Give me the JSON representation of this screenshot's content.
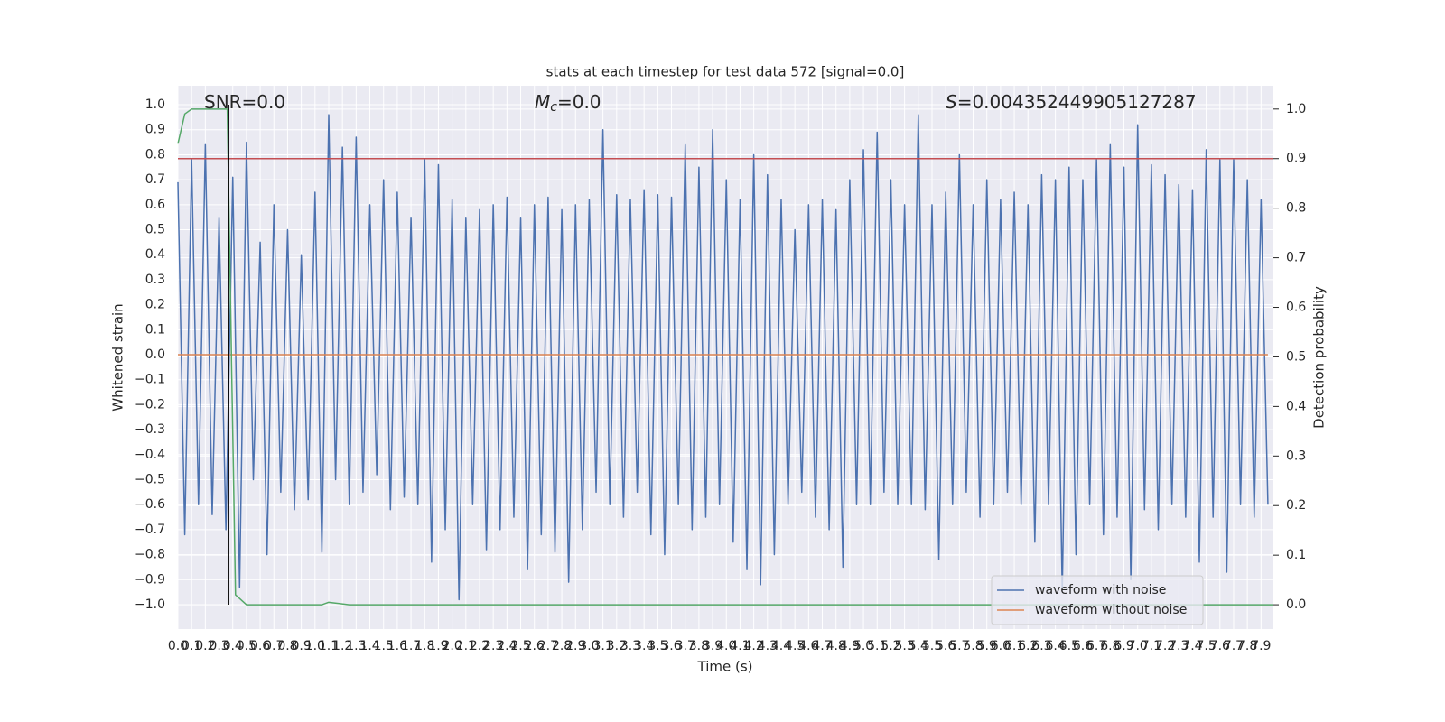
{
  "chart_data": {
    "type": "line",
    "title": "stats at each timestep for test data 572 [signal=0.0]",
    "xlabel": "Time (s)",
    "ylabel": "Whitened strain",
    "y2label": "Detection probability",
    "annotations": [
      {
        "parts": [
          {
            "text": "SNR=0.0"
          }
        ]
      },
      {
        "parts": [
          {
            "text": "M",
            "style": "italic"
          },
          {
            "text": "c",
            "style": "sub"
          },
          {
            "text": "=0.0"
          }
        ]
      },
      {
        "parts": [
          {
            "text": "S",
            "style": "italic"
          },
          {
            "text": "=0.004352449905127287"
          }
        ]
      }
    ],
    "xlim": [
      0,
      7.99
    ],
    "ylim": [
      -1.0975,
      1.076
    ],
    "y2lim": [
      -0.049,
      1.047
    ],
    "grid": true,
    "legend": "lower right",
    "background": "#eaeaf2",
    "xticks": [
      {
        "value": 0,
        "label": "0.0"
      },
      0.1,
      0.2,
      0.3,
      0.4,
      0.5,
      0.6,
      0.7,
      0.8,
      0.9,
      {
        "value": 1,
        "label": "1.0"
      },
      1.1,
      1.2,
      1.3,
      1.4,
      1.5,
      1.6,
      1.7,
      1.8,
      1.9,
      {
        "value": 2,
        "label": "2.0"
      },
      2.1,
      2.2,
      2.3,
      2.4,
      2.5,
      2.6,
      2.7,
      2.8,
      2.9,
      {
        "value": 3,
        "label": "3.0"
      },
      3.1,
      3.2,
      3.3,
      3.4,
      3.5,
      3.6,
      3.7,
      3.8,
      3.9,
      {
        "value": 4,
        "label": "4.0"
      },
      4.1,
      4.2,
      4.3,
      4.4,
      4.5,
      4.6,
      4.7,
      4.8,
      4.9,
      {
        "value": 5,
        "label": "5.0"
      },
      5.1,
      5.2,
      5.3,
      5.4,
      5.5,
      5.6,
      5.7,
      5.8,
      5.9,
      {
        "value": 6,
        "label": "6.0"
      },
      6.1,
      6.2,
      6.3,
      6.4,
      6.5,
      6.6,
      6.7,
      6.8,
      6.9,
      {
        "value": 7,
        "label": "7.0"
      },
      7.1,
      7.2,
      7.3,
      7.4,
      7.5,
      7.6,
      7.7,
      7.8,
      7.9
    ],
    "yticks": [
      {
        "value": -1,
        "label": "−1.0"
      },
      {
        "value": -0.9,
        "label": "−0.9"
      },
      {
        "value": -0.8,
        "label": "−0.8"
      },
      {
        "value": -0.7,
        "label": "−0.7"
      },
      {
        "value": -0.6,
        "label": "−0.6"
      },
      {
        "value": -0.5,
        "label": "−0.5"
      },
      {
        "value": -0.4,
        "label": "−0.4"
      },
      {
        "value": -0.3,
        "label": "−0.3"
      },
      {
        "value": -0.2,
        "label": "−0.2"
      },
      {
        "value": -0.1,
        "label": "−0.1"
      },
      {
        "value": 0,
        "label": "0.0"
      },
      0.1,
      0.2,
      0.3,
      0.4,
      0.5,
      0.6,
      0.7,
      0.8,
      0.9,
      {
        "value": 1,
        "label": "1.0"
      }
    ],
    "y2ticks": [
      {
        "value": 0,
        "label": "0.0"
      },
      0.1,
      0.2,
      0.3,
      0.4,
      0.5,
      0.6,
      0.7,
      0.8,
      0.9,
      {
        "value": 1,
        "label": "1.0"
      }
    ],
    "series": [
      {
        "name": "waveform with noise",
        "color": "#4c72b0",
        "x": [
          0,
          0.05,
          0.1,
          0.15,
          0.2,
          0.25,
          0.3,
          0.35,
          0.4,
          0.45,
          0.5,
          0.55,
          0.6,
          0.65,
          0.7,
          0.75,
          0.8,
          0.85,
          0.9,
          0.95,
          1,
          1.05,
          1.1,
          1.15,
          1.2,
          1.25,
          1.3,
          1.35,
          1.4,
          1.45,
          1.5,
          1.55,
          1.6,
          1.65,
          1.7,
          1.75,
          1.8,
          1.85,
          1.9,
          1.95,
          2,
          2.05,
          2.1,
          2.15,
          2.2,
          2.25,
          2.3,
          2.35,
          2.4,
          2.45,
          2.5,
          2.55,
          2.6,
          2.65,
          2.7,
          2.75,
          2.8,
          2.85,
          2.9,
          2.95,
          3,
          3.05,
          3.1,
          3.15,
          3.2,
          3.25,
          3.3,
          3.35,
          3.4,
          3.45,
          3.5,
          3.55,
          3.6,
          3.65,
          3.7,
          3.75,
          3.8,
          3.85,
          3.9,
          3.95,
          4,
          4.05,
          4.1,
          4.15,
          4.2,
          4.25,
          4.3,
          4.35,
          4.4,
          4.45,
          4.5,
          4.55,
          4.6,
          4.65,
          4.7,
          4.75,
          4.8,
          4.85,
          4.9,
          4.95,
          5,
          5.05,
          5.1,
          5.15,
          5.2,
          5.25,
          5.3,
          5.35,
          5.4,
          5.45,
          5.5,
          5.55,
          5.6,
          5.65,
          5.7,
          5.75,
          5.8,
          5.85,
          5.9,
          5.95,
          6,
          6.05,
          6.1,
          6.15,
          6.2,
          6.25,
          6.3,
          6.35,
          6.4,
          6.45,
          6.5,
          6.55,
          6.6,
          6.65,
          6.7,
          6.75,
          6.8,
          6.85,
          6.9,
          6.95,
          7,
          7.05,
          7.1,
          7.15,
          7.2,
          7.25,
          7.3,
          7.35,
          7.4,
          7.45,
          7.5,
          7.55,
          7.6,
          7.65,
          7.7,
          7.75,
          7.8,
          7.85,
          7.9,
          7.95
        ],
        "values": [
          0.69,
          -0.72,
          0.78,
          -0.6,
          0.84,
          -0.64,
          0.55,
          -0.7,
          0.71,
          -0.93,
          0.85,
          -0.5,
          0.45,
          -0.8,
          0.6,
          -0.55,
          0.5,
          -0.62,
          0.4,
          -0.58,
          0.65,
          -0.79,
          0.96,
          -0.5,
          0.83,
          -0.6,
          0.87,
          -0.55,
          0.6,
          -0.48,
          0.7,
          -0.62,
          0.65,
          -0.57,
          0.55,
          -0.6,
          0.78,
          -0.83,
          0.76,
          -0.7,
          0.62,
          -0.98,
          0.55,
          -0.6,
          0.58,
          -0.78,
          0.6,
          -0.7,
          0.63,
          -0.65,
          0.55,
          -0.86,
          0.6,
          -0.72,
          0.63,
          -0.79,
          0.58,
          -0.91,
          0.6,
          -0.7,
          0.62,
          -0.55,
          0.9,
          -0.6,
          0.64,
          -0.65,
          0.62,
          -0.55,
          0.66,
          -0.72,
          0.64,
          -0.8,
          0.63,
          -0.6,
          0.84,
          -0.7,
          0.75,
          -0.65,
          0.9,
          -0.6,
          0.7,
          -0.75,
          0.62,
          -0.86,
          0.8,
          -0.92,
          0.72,
          -0.8,
          0.62,
          -0.6,
          0.5,
          -0.55,
          0.6,
          -0.65,
          0.62,
          -0.7,
          0.58,
          -0.85,
          0.7,
          -0.6,
          0.82,
          -0.6,
          0.89,
          -0.55,
          0.7,
          -0.6,
          0.6,
          -0.6,
          0.96,
          -0.62,
          0.6,
          -0.82,
          0.65,
          -0.6,
          0.8,
          -0.55,
          0.6,
          -0.65,
          0.7,
          -0.6,
          0.62,
          -0.55,
          0.65,
          -0.6,
          0.6,
          -0.75,
          0.72,
          -0.6,
          0.7,
          -0.95,
          0.75,
          -0.8,
          0.7,
          -0.6,
          0.78,
          -0.72,
          0.84,
          -0.65,
          0.75,
          -0.9,
          0.92,
          -0.62,
          0.76,
          -0.7,
          0.72,
          -0.6,
          0.68,
          -0.65,
          0.66,
          -0.83,
          0.82,
          -0.65,
          0.78,
          -0.87,
          0.78,
          -0.6,
          0.7,
          -0.65,
          0.62,
          -0.6
        ]
      },
      {
        "name": "waveform without noise",
        "color": "#dd8452",
        "x": [
          0,
          7.95
        ],
        "values": [
          0,
          0
        ]
      },
      {
        "color": "#55a868",
        "axis": "y2",
        "x": [
          0,
          0.05,
          0.1,
          0.2,
          0.3,
          0.36,
          0.42,
          0.5,
          1.05,
          1.1,
          1.25,
          7.99
        ],
        "values": [
          0.93,
          0.99,
          1.0,
          1.0,
          1.0,
          1.0,
          0.02,
          0.0,
          0.0,
          0.005,
          0.0,
          0.0
        ]
      }
    ],
    "hlines": [
      {
        "value": 0.9,
        "axis": "y2",
        "color": "#c44e52"
      }
    ],
    "vlines": [
      {
        "x": 0.37,
        "ymin": -1.0,
        "ymax": 1.0,
        "color": "#000000"
      }
    ]
  }
}
